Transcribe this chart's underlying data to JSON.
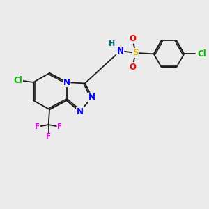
{
  "bg_color": "#ebebeb",
  "bond_color": "#1a1a1a",
  "atom_colors": {
    "N": "#0000ff",
    "Cl": "#00bb00",
    "F": "#ee00ee",
    "S": "#ccaa00",
    "O": "#ff0000",
    "H": "#007070",
    "C": "#1a1a1a"
  },
  "font_size_atom": 8.5,
  "font_size_small": 7.5
}
